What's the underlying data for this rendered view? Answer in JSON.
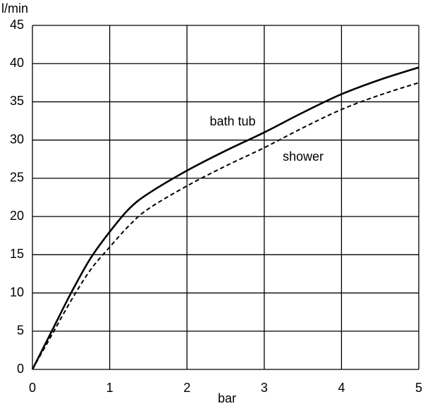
{
  "chart_data": {
    "type": "line",
    "y_label": "l/min",
    "x_label": "bar",
    "x": [
      0,
      0.25,
      0.5,
      0.75,
      1,
      1.25,
      1.5,
      2,
      2.5,
      3,
      3.5,
      4,
      4.5,
      5
    ],
    "series": [
      {
        "name": "bath tub",
        "color": "#000000",
        "dash": false,
        "values": [
          0,
          5,
          10,
          14.5,
          18,
          21,
          23,
          26,
          28.6,
          31,
          33.6,
          36,
          37.9,
          39.5
        ]
      },
      {
        "name": "shower",
        "color": "#000000",
        "dash": true,
        "values": [
          0,
          4.5,
          9,
          13,
          16,
          18.8,
          21,
          24,
          26.6,
          29,
          31.6,
          34,
          35.9,
          37.5
        ]
      }
    ],
    "xlim": [
      0,
      5
    ],
    "ylim": [
      0,
      45
    ],
    "xticks": [
      0,
      1,
      2,
      3,
      4,
      5
    ],
    "yticks": [
      0,
      5,
      10,
      15,
      20,
      25,
      30,
      35,
      40,
      45
    ],
    "grid": true
  }
}
